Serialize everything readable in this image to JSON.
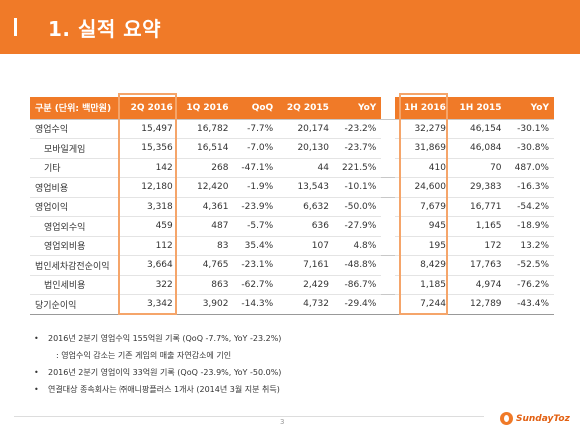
{
  "header": {
    "title": "1. 실적 요약"
  },
  "table": {
    "headers": [
      "구분 (단위: 백만원)",
      "2Q 2016",
      "1Q 2016",
      "QoQ",
      "2Q 2015",
      "YoY",
      "1H 2016",
      "1H 2015",
      "YoY"
    ],
    "rows": [
      {
        "label": "영업수익",
        "cells": [
          "15,497",
          "16,782",
          "-7.7%",
          "20,174",
          "-23.2%",
          "32,279",
          "46,154",
          "-30.1%"
        ]
      },
      {
        "label": "모바일게임",
        "cells": [
          "15,356",
          "16,514",
          "-7.0%",
          "20,130",
          "-23.7%",
          "31,869",
          "46,084",
          "-30.8%"
        ]
      },
      {
        "label": "기타",
        "cells": [
          "142",
          "268",
          "-47.1%",
          "44",
          "221.5%",
          "410",
          "70",
          "487.0%"
        ]
      },
      {
        "label": "영업비용",
        "cells": [
          "12,180",
          "12,420",
          "-1.9%",
          "13,543",
          "-10.1%",
          "24,600",
          "29,383",
          "-16.3%"
        ]
      },
      {
        "label": "영업이익",
        "cells": [
          "3,318",
          "4,361",
          "-23.9%",
          "6,632",
          "-50.0%",
          "7,679",
          "16,771",
          "-54.2%"
        ]
      },
      {
        "label": "영업외수익",
        "cells": [
          "459",
          "487",
          "-5.7%",
          "636",
          "-27.9%",
          "945",
          "1,165",
          "-18.9%"
        ]
      },
      {
        "label": "영업외비용",
        "cells": [
          "112",
          "83",
          "35.4%",
          "107",
          "4.8%",
          "195",
          "172",
          "13.2%"
        ]
      },
      {
        "label": "법인세차감전순이익",
        "cells": [
          "3,664",
          "4,765",
          "-23.1%",
          "7,161",
          "-48.8%",
          "8,429",
          "17,763",
          "-52.5%"
        ]
      },
      {
        "label": "법인세비용",
        "cells": [
          "322",
          "863",
          "-62.7%",
          "2,429",
          "-86.7%",
          "1,185",
          "4,974",
          "-76.2%"
        ]
      },
      {
        "label": "당기순이익",
        "cells": [
          "3,342",
          "3,902",
          "-14.3%",
          "4,732",
          "-29.4%",
          "7,244",
          "12,789",
          "-43.4%"
        ]
      }
    ]
  },
  "notes": {
    "bullet": "•",
    "items": [
      "2016년 2분기 영업수익 155억원 기록 (QoQ -7.7%, YoY -23.2%)",
      ": 영업수익 감소는 기존 게임의 매출 자연감소에 기인",
      "2016년 2분기 영업이익 33억원 기록 (QoQ -23.9%, YoY -50.0%)",
      "연결대상 종속회사는 ㈜애니팡플러스 1개사 (2014년 3월 지분 취득)"
    ]
  },
  "footer": {
    "page_number": "3",
    "logo_text": "SundayToz"
  },
  "colors": {
    "accent": "#f07a28",
    "highlight_border": "#f5a56a"
  }
}
